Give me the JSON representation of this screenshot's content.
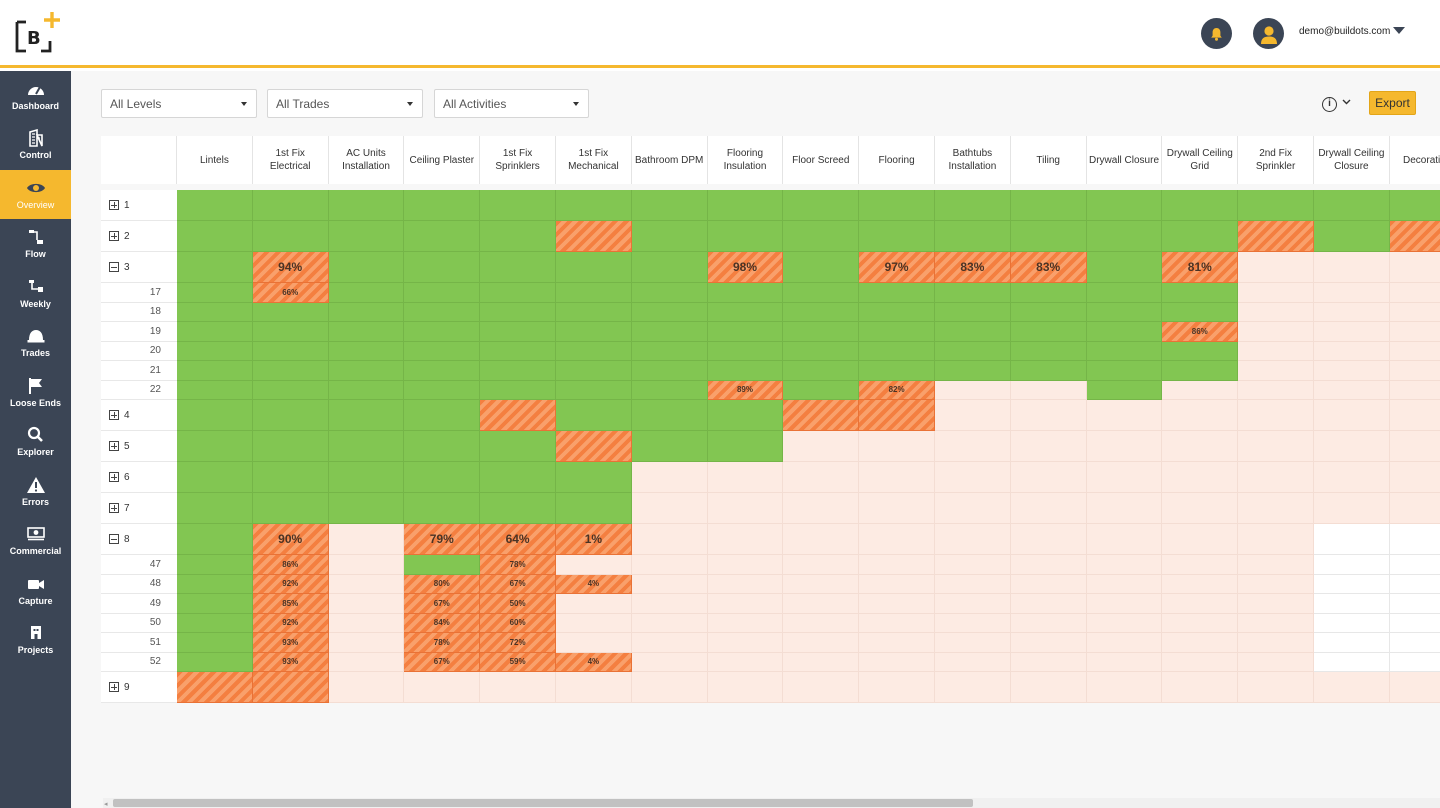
{
  "header": {
    "user_email": "demo@buildots.com"
  },
  "sidebar": {
    "items": [
      {
        "label": "Dashboard",
        "icon": "gauge-icon",
        "active": false
      },
      {
        "label": "Control",
        "icon": "building-icon",
        "active": false
      },
      {
        "label": "Overview",
        "icon": "eye-icon",
        "active": true
      },
      {
        "label": "Flow",
        "icon": "flow-icon",
        "active": false
      },
      {
        "label": "Weekly",
        "icon": "weekly-icon",
        "active": false
      },
      {
        "label": "Trades",
        "icon": "hardhat-icon",
        "active": false
      },
      {
        "label": "Loose Ends",
        "icon": "flag-icon",
        "active": false
      },
      {
        "label": "Explorer",
        "icon": "search-icon",
        "active": false
      },
      {
        "label": "Errors",
        "icon": "warning-icon",
        "active": false
      },
      {
        "label": "Commercial",
        "icon": "money-icon",
        "active": false
      },
      {
        "label": "Capture",
        "icon": "camera-icon",
        "active": false
      },
      {
        "label": "Projects",
        "icon": "projects-icon",
        "active": false
      }
    ]
  },
  "filters": {
    "levels": "All Levels",
    "trades": "All Trades",
    "activities": "All Activities"
  },
  "toolbar": {
    "info_glyph": "i",
    "export_label": "Export"
  },
  "columns": [
    "Lintels",
    "1st Fix Electrical",
    "AC Units Installation",
    "Ceiling Plaster",
    "1st Fix Sprinklers",
    "1st Fix Mechanical",
    "Bathroom DPM",
    "Flooring Insulation",
    "Floor Screed",
    "Flooring",
    "Bathtubs Installation",
    "Tiling",
    "Drywall Closure",
    "Drywall Ceiling Grid",
    "2nd Fix Sprinkler",
    "Drywall Ceiling Closure",
    "Decoration"
  ],
  "rows": [
    {
      "label": "1",
      "type": "main",
      "expanded": false,
      "cells": [
        "g",
        "g",
        "g",
        "g",
        "g",
        "g",
        "g",
        "g",
        "g",
        "g",
        "g",
        "g",
        "g",
        "g",
        "g",
        "g",
        "g"
      ]
    },
    {
      "label": "2",
      "type": "main",
      "expanded": false,
      "cells": [
        "g",
        "g",
        "g",
        "g",
        "g",
        "o",
        "g",
        "g",
        "g",
        "g",
        "g",
        "g",
        "g",
        "g",
        "o",
        "g",
        "o"
      ]
    },
    {
      "label": "3",
      "type": "main",
      "expanded": true,
      "cells": [
        "g",
        "o:94%",
        "g",
        "g",
        "g",
        "g",
        "g",
        "o:98%",
        "g",
        "o:97%",
        "o:83%",
        "o:83%",
        "g",
        "o:81%",
        "p",
        "p",
        "p"
      ]
    },
    {
      "label": "17",
      "type": "sub",
      "cells": [
        "g",
        "o:66%",
        "g",
        "g",
        "g",
        "g",
        "g",
        "g",
        "g",
        "g",
        "g",
        "g",
        "g",
        "g",
        "p",
        "p",
        "p"
      ]
    },
    {
      "label": "18",
      "type": "sub",
      "cells": [
        "g",
        "g",
        "g",
        "g",
        "g",
        "g",
        "g",
        "g",
        "g",
        "g",
        "g",
        "g",
        "g",
        "g",
        "p",
        "p",
        "p"
      ]
    },
    {
      "label": "19",
      "type": "sub",
      "cells": [
        "g",
        "g",
        "g",
        "g",
        "g",
        "g",
        "g",
        "g",
        "g",
        "g",
        "g",
        "g",
        "g",
        "o:86%",
        "p",
        "p",
        "p"
      ]
    },
    {
      "label": "20",
      "type": "sub",
      "cells": [
        "g",
        "g",
        "g",
        "g",
        "g",
        "g",
        "g",
        "g",
        "g",
        "g",
        "g",
        "g",
        "g",
        "g",
        "p",
        "p",
        "p"
      ]
    },
    {
      "label": "21",
      "type": "sub",
      "cells": [
        "g",
        "g",
        "g",
        "g",
        "g",
        "g",
        "g",
        "g",
        "g",
        "g",
        "g",
        "g",
        "g",
        "g",
        "p",
        "p",
        "p"
      ]
    },
    {
      "label": "22",
      "type": "sub",
      "cells": [
        "g",
        "g",
        "g",
        "g",
        "g",
        "g",
        "g",
        "o:89%",
        "g",
        "o:82%",
        "p",
        "p",
        "g",
        "p",
        "p",
        "p",
        "p"
      ]
    },
    {
      "label": "4",
      "type": "main",
      "expanded": false,
      "cells": [
        "g",
        "g",
        "g",
        "g",
        "o",
        "g",
        "g",
        "g",
        "o",
        "o",
        "p",
        "p",
        "p",
        "p",
        "p",
        "p",
        "p"
      ]
    },
    {
      "label": "5",
      "type": "main",
      "expanded": false,
      "cells": [
        "g",
        "g",
        "g",
        "g",
        "g",
        "o",
        "g",
        "g",
        "p",
        "p",
        "p",
        "p",
        "p",
        "p",
        "p",
        "p",
        "p"
      ]
    },
    {
      "label": "6",
      "type": "main",
      "expanded": false,
      "cells": [
        "g",
        "g",
        "g",
        "g",
        "g",
        "g",
        "p",
        "p",
        "p",
        "p",
        "p",
        "p",
        "p",
        "p",
        "p",
        "p",
        "p"
      ]
    },
    {
      "label": "7",
      "type": "main",
      "expanded": false,
      "cells": [
        "g",
        "g",
        "g",
        "g",
        "g",
        "g",
        "p",
        "p",
        "p",
        "p",
        "p",
        "p",
        "p",
        "p",
        "p",
        "p",
        "p"
      ]
    },
    {
      "label": "8",
      "type": "main",
      "expanded": true,
      "cells": [
        "g",
        "o:90%",
        "p",
        "o:79%",
        "o:64%",
        "o:1%",
        "p",
        "p",
        "p",
        "p",
        "p",
        "p",
        "p",
        "p",
        "p",
        "w",
        "w"
      ]
    },
    {
      "label": "47",
      "type": "sub",
      "cells": [
        "g",
        "o:86%",
        "p",
        "g",
        "o:78%",
        "p",
        "p",
        "p",
        "p",
        "p",
        "p",
        "p",
        "p",
        "p",
        "p",
        "w",
        "w"
      ]
    },
    {
      "label": "48",
      "type": "sub",
      "cells": [
        "g",
        "o:92%",
        "p",
        "o:80%",
        "o:67%",
        "o:4%",
        "p",
        "p",
        "p",
        "p",
        "p",
        "p",
        "p",
        "p",
        "p",
        "w",
        "w"
      ]
    },
    {
      "label": "49",
      "type": "sub",
      "cells": [
        "g",
        "o:85%",
        "p",
        "o:67%",
        "o:50%",
        "p",
        "p",
        "p",
        "p",
        "p",
        "p",
        "p",
        "p",
        "p",
        "p",
        "w",
        "w"
      ]
    },
    {
      "label": "50",
      "type": "sub",
      "cells": [
        "g",
        "o:92%",
        "p",
        "o:84%",
        "o:60%",
        "p",
        "p",
        "p",
        "p",
        "p",
        "p",
        "p",
        "p",
        "p",
        "p",
        "w",
        "w"
      ]
    },
    {
      "label": "51",
      "type": "sub",
      "cells": [
        "g",
        "o:93%",
        "p",
        "o:78%",
        "o:72%",
        "p",
        "p",
        "p",
        "p",
        "p",
        "p",
        "p",
        "p",
        "p",
        "p",
        "w",
        "w"
      ]
    },
    {
      "label": "52",
      "type": "sub",
      "cells": [
        "g",
        "o:93%",
        "p",
        "o:67%",
        "o:59%",
        "o:4%",
        "p",
        "p",
        "p",
        "p",
        "p",
        "p",
        "p",
        "p",
        "p",
        "w",
        "w"
      ]
    },
    {
      "label": "9",
      "type": "main",
      "expanded": false,
      "cells": [
        "o",
        "o",
        "p",
        "p",
        "p",
        "p",
        "p",
        "p",
        "p",
        "p",
        "p",
        "p",
        "p",
        "p",
        "p",
        "p",
        "p"
      ]
    }
  ],
  "colors": {
    "accent": "#f5b82e",
    "sidebar": "#3b4555",
    "complete": "#82c652",
    "in_progress": "#f47f40",
    "not_started": "#fdebe3"
  }
}
